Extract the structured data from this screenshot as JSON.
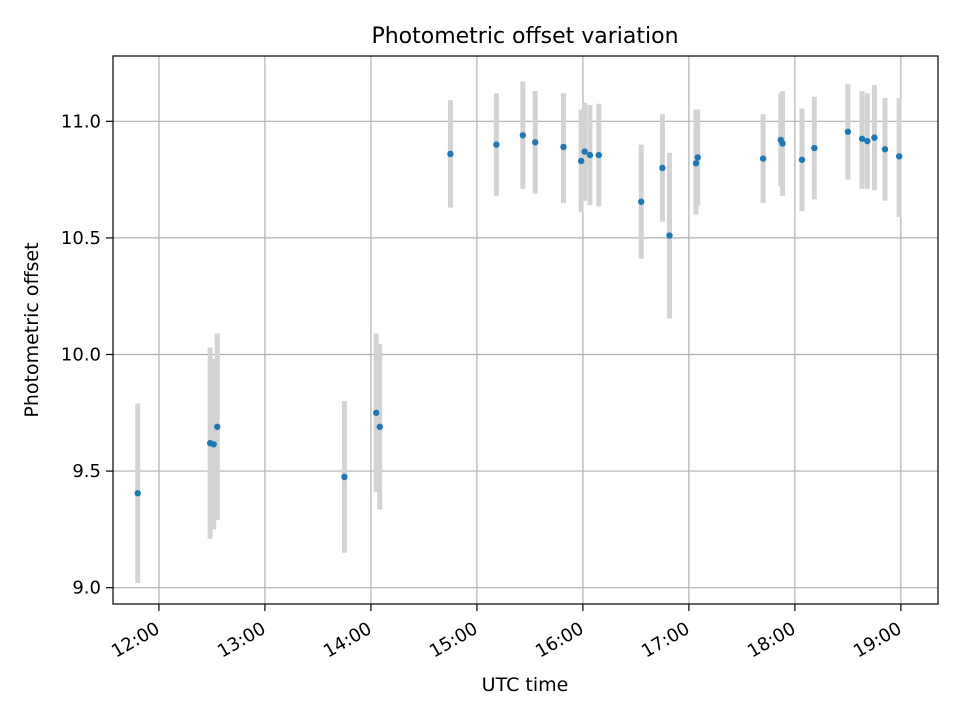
{
  "chart_data": {
    "type": "scatter",
    "title": "Photometric offset variation",
    "xlabel": "UTC time",
    "ylabel": "Photometric offset",
    "x_axis": {
      "kind": "time",
      "range": [
        "11:34",
        "19:21"
      ],
      "ticks": [
        "12:00",
        "13:00",
        "14:00",
        "15:00",
        "16:00",
        "17:00",
        "18:00",
        "19:00"
      ]
    },
    "y_axis": {
      "range": [
        8.93,
        11.28
      ],
      "ticks": [
        "9.0",
        "9.5",
        "10.0",
        "10.5",
        "11.0"
      ]
    },
    "grid": true,
    "colors": {
      "points": "#1f77b4",
      "error_bars": "#d3d3d3",
      "grid": "#b0b0b0"
    },
    "points": [
      {
        "time": "11:48",
        "y": 9.405,
        "low": 9.02,
        "high": 9.79
      },
      {
        "time": "12:29",
        "y": 9.62,
        "low": 9.21,
        "high": 10.03
      },
      {
        "time": "12:31",
        "y": 9.615,
        "low": 9.25,
        "high": 9.98
      },
      {
        "time": "12:33",
        "y": 9.69,
        "low": 9.29,
        "high": 10.09
      },
      {
        "time": "13:45",
        "y": 9.475,
        "low": 9.15,
        "high": 9.8
      },
      {
        "time": "14:03",
        "y": 9.75,
        "low": 9.41,
        "high": 10.09
      },
      {
        "time": "14:05",
        "y": 9.69,
        "low": 9.335,
        "high": 10.045
      },
      {
        "time": "14:45",
        "y": 10.86,
        "low": 10.63,
        "high": 11.09
      },
      {
        "time": "15:11",
        "y": 10.9,
        "low": 10.68,
        "high": 11.12
      },
      {
        "time": "15:26",
        "y": 10.94,
        "low": 10.71,
        "high": 11.17
      },
      {
        "time": "15:33",
        "y": 10.91,
        "low": 10.69,
        "high": 11.13
      },
      {
        "time": "15:49",
        "y": 10.89,
        "low": 10.65,
        "high": 11.12
      },
      {
        "time": "15:59",
        "y": 10.83,
        "low": 10.61,
        "high": 11.05
      },
      {
        "time": "16:01",
        "y": 10.87,
        "low": 10.66,
        "high": 11.08
      },
      {
        "time": "16:04",
        "y": 10.855,
        "low": 10.64,
        "high": 11.07
      },
      {
        "time": "16:09",
        "y": 10.855,
        "low": 10.635,
        "high": 11.075
      },
      {
        "time": "16:33",
        "y": 10.655,
        "low": 10.41,
        "high": 10.9
      },
      {
        "time": "16:45",
        "y": 10.8,
        "low": 10.57,
        "high": 11.03
      },
      {
        "time": "16:49",
        "y": 10.51,
        "low": 10.155,
        "high": 10.865
      },
      {
        "time": "17:04",
        "y": 10.82,
        "low": 10.6,
        "high": 11.05
      },
      {
        "time": "17:05",
        "y": 10.845,
        "low": 10.64,
        "high": 11.05
      },
      {
        "time": "17:42",
        "y": 10.84,
        "low": 10.65,
        "high": 11.03
      },
      {
        "time": "17:52",
        "y": 10.92,
        "low": 10.72,
        "high": 11.12
      },
      {
        "time": "17:53",
        "y": 10.905,
        "low": 10.68,
        "high": 11.13
      },
      {
        "time": "18:04",
        "y": 10.835,
        "low": 10.615,
        "high": 11.055
      },
      {
        "time": "18:11",
        "y": 10.885,
        "low": 10.665,
        "high": 11.105
      },
      {
        "time": "18:30",
        "y": 10.955,
        "low": 10.75,
        "high": 11.16
      },
      {
        "time": "18:38",
        "y": 10.925,
        "low": 10.71,
        "high": 11.13
      },
      {
        "time": "18:41",
        "y": 10.915,
        "low": 10.71,
        "high": 11.12
      },
      {
        "time": "18:45",
        "y": 10.93,
        "low": 10.705,
        "high": 11.155
      },
      {
        "time": "18:51",
        "y": 10.88,
        "low": 10.66,
        "high": 11.1
      },
      {
        "time": "18:59",
        "y": 10.85,
        "low": 10.59,
        "high": 11.1
      }
    ]
  }
}
